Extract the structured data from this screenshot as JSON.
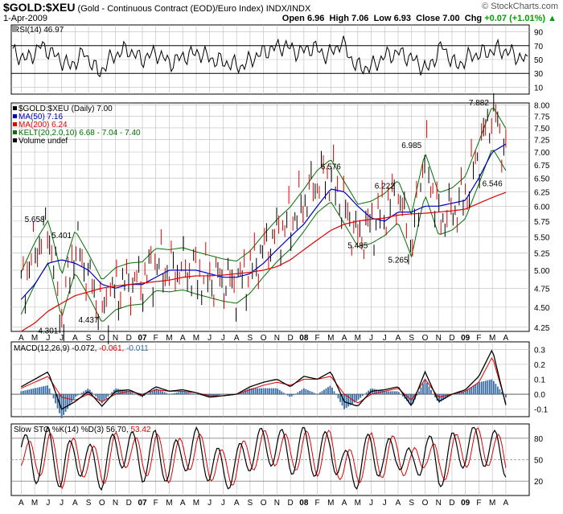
{
  "header": {
    "ticker": "$GOLD:$XEU",
    "description": "(Gold - Continuous Contract (EOD)/Euro Index)",
    "exchange": "INDX/INDX",
    "date": "1-Apr-2009",
    "copyright": "© StockCharts.com",
    "open_label": "Open",
    "open": "6.96",
    "high_label": "High",
    "high": "7.06",
    "low_label": "Low",
    "low": "6.93",
    "close_label": "Close",
    "close": "7.00",
    "chg_label": "Chg",
    "chg": "+0.07 (+1.01%)",
    "chg_arrow": "▲"
  },
  "colors": {
    "up_candle": "#000000",
    "down_candle": "#e00000",
    "ma50": "#0000c0",
    "ma200": "#e00000",
    "kelt": "#007000",
    "macd_signal": "#e00000",
    "macd_hist": "#3a6ea5",
    "rsi_fill": "#00a000"
  },
  "panels": {
    "rsi": {
      "label": "RSI(14) 46.97",
      "ticks": [
        "90",
        "70",
        "50",
        "30",
        "10"
      ]
    },
    "price": {
      "legend": [
        {
          "text": "$GOLD:$XEU (Daily) 7.00",
          "color": "#000000"
        },
        {
          "text": "MA(50) 7.16",
          "color": "#0000c0"
        },
        {
          "text": "MA(200) 6.24",
          "color": "#e00000"
        },
        {
          "text": "KELT(20,2.0,10) 6.68 - 7.04 - 7.40",
          "color": "#007000"
        },
        {
          "text": "Volume undef",
          "color": "#000000"
        }
      ],
      "ticks": [
        "8.00",
        "7.75",
        "7.50",
        "7.25",
        "7.00",
        "6.75",
        "6.50",
        "6.25",
        "6.00",
        "5.75",
        "5.50",
        "5.25",
        "5.00",
        "4.75",
        "4.50",
        "4.25"
      ],
      "annotations": [
        "5.658",
        "5.401",
        "4.301",
        "4.437",
        "6.576",
        "5.485",
        "6.222",
        "5.265",
        "6.985",
        "7.882",
        "6.546"
      ]
    },
    "macd": {
      "label_prefix": "MACD(12,26,9)",
      "macd_val": "-0.072",
      "signal_val": "-0.061",
      "hist_val": "-0.011",
      "ticks": [
        "0.3",
        "0.2",
        "0.1",
        "0.0",
        "-0.1"
      ]
    },
    "sto": {
      "label_prefix": "Slow STO %K(14) %D(3)",
      "k_val": "56.70",
      "d_val": "53.42",
      "ticks": [
        "80",
        "50",
        "20"
      ]
    }
  },
  "x_axis": [
    "A",
    "M",
    "J",
    "J",
    "A",
    "S",
    "O",
    "N",
    "D",
    "07",
    "F",
    "M",
    "A",
    "M",
    "J",
    "J",
    "A",
    "S",
    "O",
    "N",
    "D",
    "08",
    "F",
    "M",
    "A",
    "M",
    "J",
    "J",
    "A",
    "S",
    "O",
    "N",
    "D",
    "09",
    "F",
    "M",
    "A"
  ],
  "chart_data": {
    "type": "line",
    "title": "$GOLD:$XEU (Daily)",
    "y_scale": "log",
    "ylim": [
      4.2,
      8.05
    ],
    "x": [
      "2006-04",
      "2006-05",
      "2006-06",
      "2006-07",
      "2006-08",
      "2006-09",
      "2006-10",
      "2006-11",
      "2006-12",
      "2007-01",
      "2007-02",
      "2007-03",
      "2007-04",
      "2007-05",
      "2007-06",
      "2007-07",
      "2007-08",
      "2007-09",
      "2007-10",
      "2007-11",
      "2007-12",
      "2008-01",
      "2008-02",
      "2008-03",
      "2008-04",
      "2008-05",
      "2008-06",
      "2008-07",
      "2008-08",
      "2008-09",
      "2008-10",
      "2008-11",
      "2008-12",
      "2009-01",
      "2009-02",
      "2009-03",
      "2009-04"
    ],
    "series": [
      {
        "name": "$GOLD:$XEU (Daily)",
        "values": [
          4.75,
          5.3,
          5.658,
          4.301,
          5.401,
          4.9,
          4.437,
          4.75,
          4.82,
          4.85,
          5.1,
          5.0,
          5.05,
          4.95,
          4.9,
          4.85,
          4.8,
          5.0,
          5.3,
          5.55,
          5.75,
          6.1,
          6.45,
          6.576,
          5.95,
          5.485,
          5.7,
          5.95,
          6.222,
          5.265,
          6.985,
          5.8,
          5.9,
          6.2,
          7.0,
          7.882,
          7.0
        ]
      },
      {
        "name": "MA(50)",
        "values": [
          4.6,
          4.8,
          5.1,
          5.15,
          5.1,
          5.0,
          4.8,
          4.75,
          4.8,
          4.8,
          4.9,
          5.0,
          5.0,
          5.0,
          4.95,
          4.9,
          4.9,
          4.95,
          5.1,
          5.3,
          5.5,
          5.7,
          6.0,
          6.3,
          6.25,
          6.0,
          5.8,
          5.75,
          5.9,
          5.9,
          6.0,
          6.0,
          6.05,
          6.1,
          6.5,
          7.0,
          7.16
        ]
      },
      {
        "name": "MA(200)",
        "values": [
          4.2,
          4.3,
          4.45,
          4.55,
          4.65,
          4.7,
          4.75,
          4.78,
          4.8,
          4.82,
          4.84,
          4.86,
          4.9,
          4.92,
          4.92,
          4.93,
          4.95,
          4.97,
          5.0,
          5.05,
          5.15,
          5.3,
          5.45,
          5.6,
          5.7,
          5.75,
          5.78,
          5.8,
          5.85,
          5.87,
          5.88,
          5.9,
          5.92,
          5.95,
          6.05,
          6.15,
          6.24
        ]
      }
    ],
    "annotations": [
      {
        "label": "5.658",
        "x": "2006-05"
      },
      {
        "label": "4.301",
        "x": "2006-06"
      },
      {
        "label": "5.401",
        "x": "2006-07"
      },
      {
        "label": "4.437",
        "x": "2006-09"
      },
      {
        "label": "6.576",
        "x": "2008-03"
      },
      {
        "label": "5.485",
        "x": "2008-05"
      },
      {
        "label": "6.222",
        "x": "2008-07"
      },
      {
        "label": "5.265",
        "x": "2008-08"
      },
      {
        "label": "6.985",
        "x": "2008-09"
      },
      {
        "label": "7.882",
        "x": "2009-02"
      },
      {
        "label": "6.546",
        "x": "2009-03"
      }
    ],
    "indicators": {
      "rsi": {
        "values": [
          60,
          50,
          70,
          55,
          40,
          60,
          30,
          55,
          65,
          50,
          60,
          45,
          55,
          60,
          50,
          45,
          40,
          55,
          65,
          70,
          60,
          68,
          55,
          75,
          40,
          38,
          55,
          60,
          50,
          35,
          70,
          40,
          55,
          60,
          65,
          58,
          47
        ]
      },
      "macd": {
        "macd": [
          0.05,
          0.1,
          0.15,
          -0.1,
          -0.05,
          0.02,
          -0.08,
          0.02,
          0.03,
          -0.01,
          0.05,
          0.02,
          0.03,
          0.01,
          -0.02,
          -0.01,
          0.0,
          0.05,
          0.08,
          0.1,
          0.05,
          0.12,
          0.1,
          0.15,
          -0.05,
          -0.08,
          0.02,
          0.03,
          0.05,
          -0.08,
          0.15,
          -0.05,
          0.0,
          0.03,
          0.12,
          0.3,
          -0.072
        ],
        "signal": [
          0.04,
          0.08,
          0.12,
          -0.02,
          -0.04,
          0.0,
          -0.05,
          0.0,
          0.02,
          0.0,
          0.03,
          0.02,
          0.02,
          0.01,
          -0.01,
          -0.01,
          0.0,
          0.03,
          0.06,
          0.08,
          0.06,
          0.1,
          0.1,
          0.12,
          0.0,
          -0.06,
          0.0,
          0.02,
          0.04,
          -0.04,
          0.1,
          -0.02,
          0.0,
          0.02,
          0.08,
          0.25,
          -0.061
        ]
      },
      "sto": {
        "k": [
          85,
          30,
          90,
          15,
          70,
          40,
          20,
          80,
          85,
          40,
          80,
          30,
          70,
          85,
          40,
          20,
          30,
          75,
          85,
          90,
          60,
          88,
          50,
          90,
          20,
          25,
          80,
          40,
          85,
          15,
          90,
          20,
          70,
          85,
          90,
          80,
          57
        ],
        "d": [
          80,
          35,
          85,
          20,
          65,
          45,
          25,
          75,
          80,
          45,
          75,
          35,
          65,
          80,
          45,
          25,
          32,
          70,
          80,
          85,
          62,
          85,
          55,
          85,
          25,
          30,
          75,
          45,
          80,
          20,
          85,
          25,
          65,
          80,
          88,
          82,
          53
        ]
      }
    }
  }
}
